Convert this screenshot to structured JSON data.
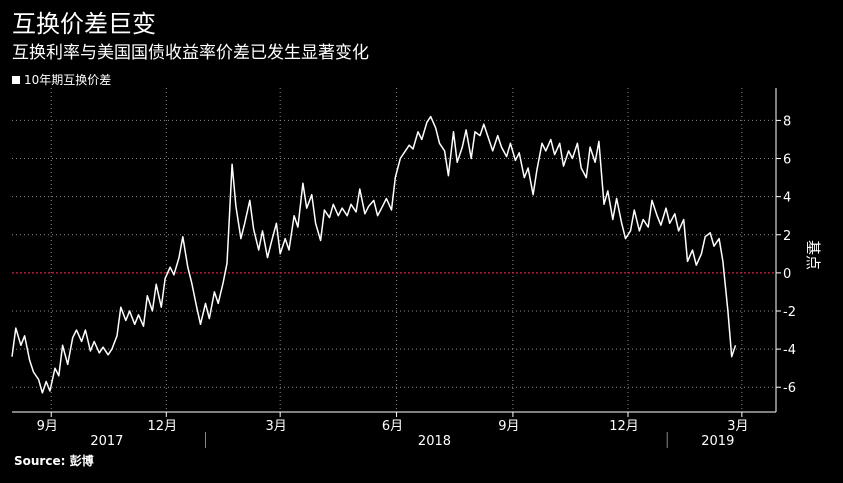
{
  "colors": {
    "background": "#000000",
    "line": "#ffffff",
    "zero_line": "#d81e3c",
    "grid": "#8a8a8a"
  },
  "chart_data": {
    "type": "line",
    "title": "互换价差巨变",
    "subtitle": "互换利率与美国国债收益率价差已发生显著变化",
    "ylabel": "基点",
    "source": "Source: 彭博",
    "legend_placement": "top-left",
    "grid": true,
    "ylim": [
      -7.3,
      9.7
    ],
    "xlim": [
      "2017-08-01",
      "2019-03-28"
    ],
    "y_ticks": [
      8,
      6,
      4,
      2,
      0,
      -2,
      -4,
      -6
    ],
    "month_ticks": [
      {
        "label": "9月",
        "date": "2017-09-01"
      },
      {
        "label": "12月",
        "date": "2017-12-01"
      },
      {
        "label": "3月",
        "date": "2018-03-01"
      },
      {
        "label": "6月",
        "date": "2018-06-01"
      },
      {
        "label": "9月",
        "date": "2018-09-01"
      },
      {
        "label": "12月",
        "date": "2018-12-01"
      },
      {
        "label": "3月",
        "date": "2019-03-01"
      }
    ],
    "year_labels": [
      {
        "label": "2017",
        "date": "2017-10-15"
      },
      {
        "label": "2018",
        "date": "2018-07-01"
      },
      {
        "label": "2019",
        "date": "2019-02-10"
      }
    ],
    "year_separators": [
      "2018-01-01",
      "2019-01-01"
    ],
    "reference_line": {
      "y": 0
    },
    "series": [
      {
        "name": "10年期互换价差",
        "points": [
          [
            "2017-08-01",
            -4.4
          ],
          [
            "2017-08-04",
            -2.9
          ],
          [
            "2017-08-08",
            -3.8
          ],
          [
            "2017-08-11",
            -3.3
          ],
          [
            "2017-08-15",
            -4.6
          ],
          [
            "2017-08-18",
            -5.2
          ],
          [
            "2017-08-22",
            -5.6
          ],
          [
            "2017-08-25",
            -6.3
          ],
          [
            "2017-08-28",
            -5.7
          ],
          [
            "2017-08-31",
            -6.2
          ],
          [
            "2017-09-04",
            -5.0
          ],
          [
            "2017-09-07",
            -5.4
          ],
          [
            "2017-09-10",
            -3.8
          ],
          [
            "2017-09-14",
            -4.8
          ],
          [
            "2017-09-18",
            -3.4
          ],
          [
            "2017-09-21",
            -3.0
          ],
          [
            "2017-09-25",
            -3.6
          ],
          [
            "2017-09-28",
            -3.0
          ],
          [
            "2017-10-02",
            -4.1
          ],
          [
            "2017-10-05",
            -3.6
          ],
          [
            "2017-10-09",
            -4.2
          ],
          [
            "2017-10-12",
            -3.9
          ],
          [
            "2017-10-16",
            -4.3
          ],
          [
            "2017-10-19",
            -4.0
          ],
          [
            "2017-10-23",
            -3.3
          ],
          [
            "2017-10-26",
            -1.8
          ],
          [
            "2017-10-30",
            -2.5
          ],
          [
            "2017-11-02",
            -2.0
          ],
          [
            "2017-11-06",
            -2.7
          ],
          [
            "2017-11-09",
            -2.2
          ],
          [
            "2017-11-13",
            -2.8
          ],
          [
            "2017-11-16",
            -1.2
          ],
          [
            "2017-11-20",
            -2.0
          ],
          [
            "2017-11-23",
            -0.6
          ],
          [
            "2017-11-27",
            -1.8
          ],
          [
            "2017-11-30",
            -0.3
          ],
          [
            "2017-12-04",
            0.3
          ],
          [
            "2017-12-07",
            -0.1
          ],
          [
            "2017-12-11",
            0.8
          ],
          [
            "2017-12-14",
            1.9
          ],
          [
            "2017-12-18",
            0.3
          ],
          [
            "2017-12-21",
            -0.5
          ],
          [
            "2017-12-25",
            -1.8
          ],
          [
            "2017-12-28",
            -2.7
          ],
          [
            "2018-01-01",
            -1.6
          ],
          [
            "2018-01-04",
            -2.4
          ],
          [
            "2018-01-08",
            -1.0
          ],
          [
            "2018-01-11",
            -1.6
          ],
          [
            "2018-01-15",
            -0.5
          ],
          [
            "2018-01-18",
            0.5
          ],
          [
            "2018-01-22",
            5.7
          ],
          [
            "2018-01-25",
            3.5
          ],
          [
            "2018-01-29",
            1.8
          ],
          [
            "2018-02-01",
            2.6
          ],
          [
            "2018-02-05",
            3.8
          ],
          [
            "2018-02-08",
            2.3
          ],
          [
            "2018-02-12",
            1.2
          ],
          [
            "2018-02-15",
            2.2
          ],
          [
            "2018-02-19",
            0.8
          ],
          [
            "2018-02-22",
            1.6
          ],
          [
            "2018-02-26",
            2.6
          ],
          [
            "2018-03-01",
            1.0
          ],
          [
            "2018-03-05",
            1.8
          ],
          [
            "2018-03-08",
            1.2
          ],
          [
            "2018-03-12",
            3.0
          ],
          [
            "2018-03-15",
            2.4
          ],
          [
            "2018-03-19",
            4.7
          ],
          [
            "2018-03-22",
            3.4
          ],
          [
            "2018-03-26",
            4.1
          ],
          [
            "2018-03-29",
            2.6
          ],
          [
            "2018-04-02",
            1.7
          ],
          [
            "2018-04-05",
            3.3
          ],
          [
            "2018-04-09",
            2.9
          ],
          [
            "2018-04-12",
            3.6
          ],
          [
            "2018-04-16",
            3.0
          ],
          [
            "2018-04-19",
            3.4
          ],
          [
            "2018-04-23",
            3.0
          ],
          [
            "2018-04-26",
            3.6
          ],
          [
            "2018-04-30",
            3.2
          ],
          [
            "2018-05-03",
            4.4
          ],
          [
            "2018-05-07",
            3.1
          ],
          [
            "2018-05-10",
            3.5
          ],
          [
            "2018-05-14",
            3.8
          ],
          [
            "2018-05-17",
            3.0
          ],
          [
            "2018-05-21",
            3.5
          ],
          [
            "2018-05-24",
            3.9
          ],
          [
            "2018-05-28",
            3.3
          ],
          [
            "2018-05-31",
            5.0
          ],
          [
            "2018-06-04",
            6.0
          ],
          [
            "2018-06-07",
            6.3
          ],
          [
            "2018-06-11",
            6.7
          ],
          [
            "2018-06-14",
            6.5
          ],
          [
            "2018-06-18",
            7.4
          ],
          [
            "2018-06-21",
            7.0
          ],
          [
            "2018-06-25",
            7.9
          ],
          [
            "2018-06-28",
            8.2
          ],
          [
            "2018-07-02",
            7.6
          ],
          [
            "2018-07-05",
            6.8
          ],
          [
            "2018-07-09",
            6.4
          ],
          [
            "2018-07-12",
            5.1
          ],
          [
            "2018-07-16",
            7.4
          ],
          [
            "2018-07-19",
            5.8
          ],
          [
            "2018-07-23",
            6.6
          ],
          [
            "2018-07-26",
            7.5
          ],
          [
            "2018-07-30",
            6.0
          ],
          [
            "2018-08-02",
            7.4
          ],
          [
            "2018-08-06",
            7.2
          ],
          [
            "2018-08-09",
            7.8
          ],
          [
            "2018-08-13",
            7.0
          ],
          [
            "2018-08-16",
            6.4
          ],
          [
            "2018-08-20",
            7.2
          ],
          [
            "2018-08-23",
            6.6
          ],
          [
            "2018-08-27",
            6.1
          ],
          [
            "2018-08-30",
            6.8
          ],
          [
            "2018-09-03",
            5.9
          ],
          [
            "2018-09-06",
            6.3
          ],
          [
            "2018-09-10",
            5.0
          ],
          [
            "2018-09-13",
            5.5
          ],
          [
            "2018-09-17",
            4.1
          ],
          [
            "2018-09-20",
            5.4
          ],
          [
            "2018-09-24",
            6.8
          ],
          [
            "2018-09-27",
            6.4
          ],
          [
            "2018-10-01",
            7.0
          ],
          [
            "2018-10-04",
            6.2
          ],
          [
            "2018-10-08",
            6.8
          ],
          [
            "2018-10-11",
            5.6
          ],
          [
            "2018-10-15",
            6.4
          ],
          [
            "2018-10-18",
            6.0
          ],
          [
            "2018-10-22",
            6.8
          ],
          [
            "2018-10-25",
            5.5
          ],
          [
            "2018-10-29",
            5.0
          ],
          [
            "2018-11-01",
            6.6
          ],
          [
            "2018-11-05",
            5.8
          ],
          [
            "2018-11-08",
            6.9
          ],
          [
            "2018-11-12",
            3.6
          ],
          [
            "2018-11-15",
            4.3
          ],
          [
            "2018-11-19",
            2.8
          ],
          [
            "2018-11-22",
            3.9
          ],
          [
            "2018-11-26",
            2.6
          ],
          [
            "2018-11-29",
            1.8
          ],
          [
            "2018-12-03",
            2.2
          ],
          [
            "2018-12-06",
            3.3
          ],
          [
            "2018-12-10",
            2.2
          ],
          [
            "2018-12-13",
            2.8
          ],
          [
            "2018-12-17",
            2.4
          ],
          [
            "2018-12-20",
            3.8
          ],
          [
            "2018-12-24",
            3.0
          ],
          [
            "2018-12-27",
            2.5
          ],
          [
            "2018-12-31",
            3.4
          ],
          [
            "2019-01-03",
            2.6
          ],
          [
            "2019-01-07",
            3.1
          ],
          [
            "2019-01-10",
            2.2
          ],
          [
            "2019-01-14",
            2.8
          ],
          [
            "2019-01-17",
            0.6
          ],
          [
            "2019-01-21",
            1.2
          ],
          [
            "2019-01-24",
            0.4
          ],
          [
            "2019-01-28",
            1.0
          ],
          [
            "2019-01-31",
            1.9
          ],
          [
            "2019-02-04",
            2.1
          ],
          [
            "2019-02-07",
            1.4
          ],
          [
            "2019-02-11",
            1.8
          ],
          [
            "2019-02-14",
            0.6
          ],
          [
            "2019-02-18",
            -2.0
          ],
          [
            "2019-02-21",
            -4.4
          ],
          [
            "2019-02-24",
            -3.8
          ]
        ]
      }
    ]
  }
}
